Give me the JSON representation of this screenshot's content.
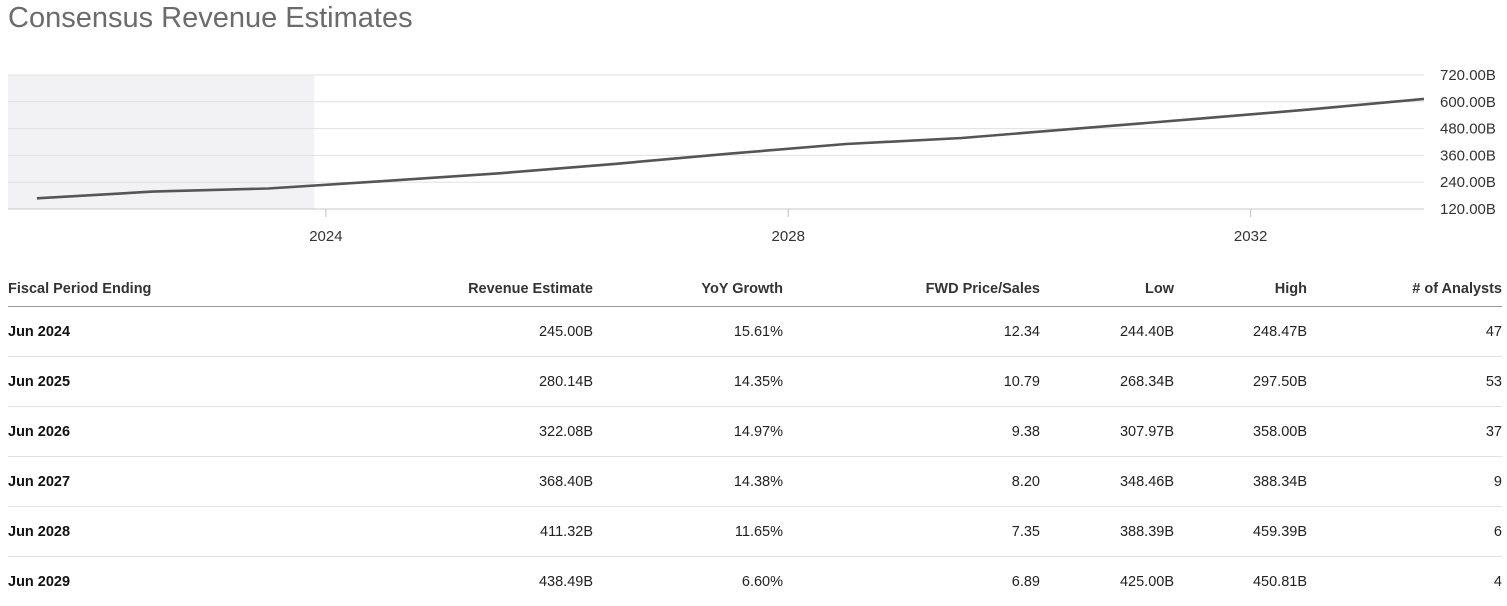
{
  "title": "Consensus Revenue Estimates",
  "chart_data": {
    "type": "line",
    "x": [
      2021.5,
      2022.5,
      2023.5,
      2024.5,
      2025.5,
      2026.5,
      2027.5,
      2028.5,
      2029.5,
      2030.5,
      2031.5,
      2032.5,
      2033.5
    ],
    "values": [
      168,
      198,
      212,
      245,
      280,
      322,
      368,
      411,
      438,
      480,
      522,
      565,
      613
    ],
    "xticks": [
      "2024",
      "2028",
      "2032"
    ],
    "yticks": [
      "120.00B",
      "240.00B",
      "360.00B",
      "480.00B",
      "600.00B",
      "720.00B"
    ],
    "ylim": [
      120,
      720
    ],
    "grid": true,
    "historical_shading_end": 2023.9,
    "line_color": "#555555"
  },
  "table": {
    "headers": [
      "Fiscal Period Ending",
      "Revenue Estimate",
      "YoY Growth",
      "FWD Price/Sales",
      "Low",
      "High",
      "# of Analysts"
    ],
    "rows": [
      [
        "Jun 2024",
        "245.00B",
        "15.61%",
        "12.34",
        "244.40B",
        "248.47B",
        "47"
      ],
      [
        "Jun 2025",
        "280.14B",
        "14.35%",
        "10.79",
        "268.34B",
        "297.50B",
        "53"
      ],
      [
        "Jun 2026",
        "322.08B",
        "14.97%",
        "9.38",
        "307.97B",
        "358.00B",
        "37"
      ],
      [
        "Jun 2027",
        "368.40B",
        "14.38%",
        "8.20",
        "348.46B",
        "388.34B",
        "9"
      ],
      [
        "Jun 2028",
        "411.32B",
        "11.65%",
        "7.35",
        "388.39B",
        "459.39B",
        "6"
      ],
      [
        "Jun 2029",
        "438.49B",
        "6.60%",
        "6.89",
        "425.00B",
        "450.81B",
        "4"
      ]
    ]
  }
}
